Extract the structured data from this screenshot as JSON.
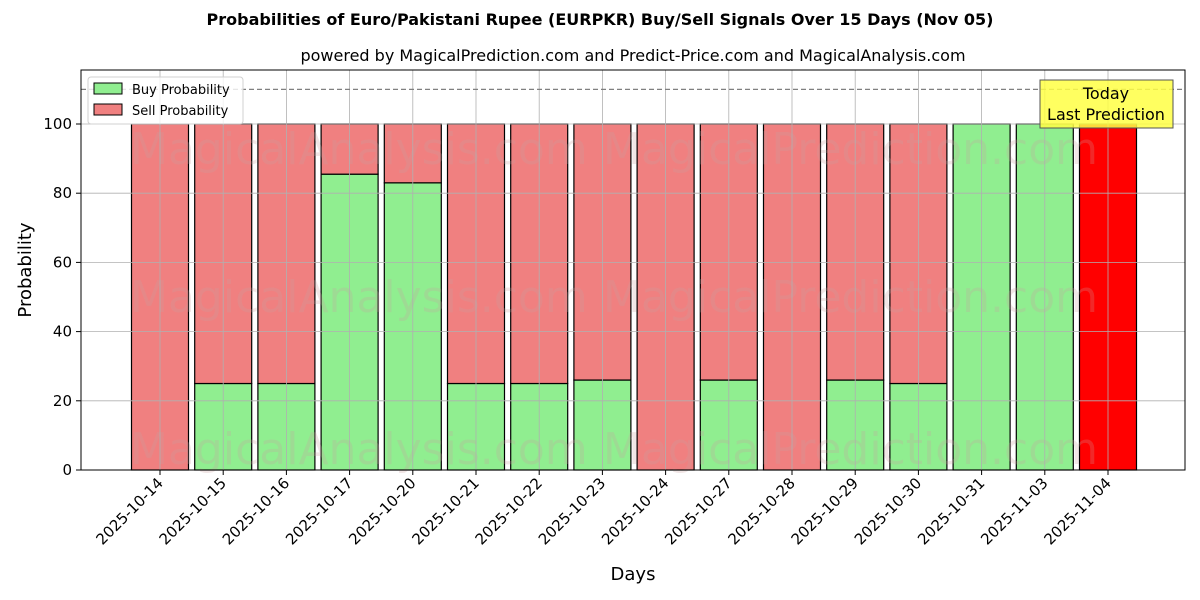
{
  "chart_data": {
    "type": "bar",
    "stacked": true,
    "title": "Probabilities of Euro/Pakistani Rupee (EURPKR) Buy/Sell Signals Over 15 Days (Nov 05)",
    "subtitle": "powered by MagicalPrediction.com and Predict-Price.com and MagicalAnalysis.com",
    "xlabel": "Days",
    "ylabel": "Probability",
    "ylim": [
      0,
      115
    ],
    "yticks": [
      0,
      20,
      40,
      60,
      80,
      100
    ],
    "grid": true,
    "legend_position": "upper left",
    "reference_line": {
      "y": 110,
      "style": "dashed",
      "color": "#808080"
    },
    "categories": [
      "2025-10-14",
      "2025-10-15",
      "2025-10-16",
      "2025-10-17",
      "2025-10-20",
      "2025-10-21",
      "2025-10-22",
      "2025-10-23",
      "2025-10-24",
      "2025-10-27",
      "2025-10-28",
      "2025-10-29",
      "2025-10-30",
      "2025-10-31",
      "2025-11-03",
      "2025-11-04"
    ],
    "series": [
      {
        "name": "Buy Probability",
        "color": "#90ee90",
        "values": [
          0,
          25,
          25,
          85.5,
          83,
          25,
          25,
          26,
          0,
          26,
          0,
          26,
          25,
          100,
          100,
          0
        ]
      },
      {
        "name": "Sell Probability",
        "color": "#f08080",
        "values": [
          100,
          75,
          75,
          14.5,
          17,
          75,
          75,
          74,
          100,
          74,
          100,
          74,
          75,
          0,
          0,
          100
        ]
      }
    ],
    "highlight": {
      "category": "2025-11-04",
      "color": "#ff0000",
      "annotation": "Today\nLast Prediction"
    },
    "annotation": {
      "line1": "Today",
      "line2": "Last Prediction",
      "bg_color": "#ffff44"
    },
    "watermarks": [
      "MagicalAnalysis.com",
      "MagicalPrediction.com"
    ]
  }
}
